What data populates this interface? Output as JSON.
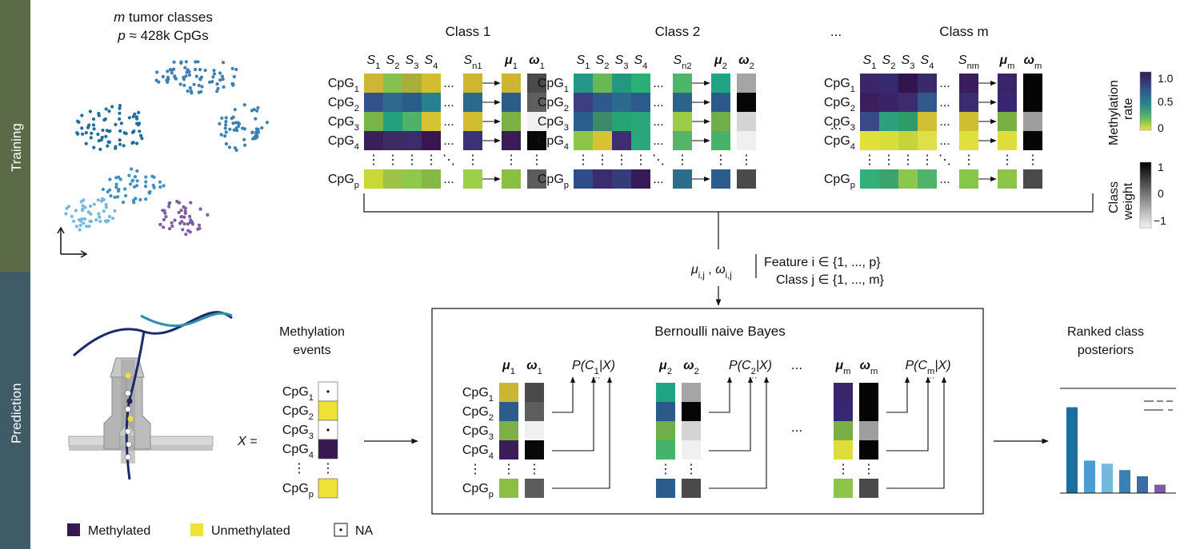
{
  "sidebar": {
    "training_label": "Training",
    "prediction_label": "Prediction",
    "training_color": "#5b6a47",
    "prediction_color": "#3f5b66"
  },
  "training": {
    "tsne_title_line1": "m tumor classes",
    "tsne_title_line2": "p ≈ 428k CpGs",
    "ellipsis": "...",
    "classes": [
      {
        "title": "Class 1",
        "sample_labels": [
          "S1",
          "S2",
          "S3",
          "S4",
          "Sn1"
        ],
        "mu_label": "μ1",
        "omega_label": "ω1",
        "rows": [
          {
            "label": "CpG1",
            "cells": [
              "#cdb536",
              "#86c04e",
              "#a9ad3a",
              "#d2bd31",
              "#cdb731"
            ],
            "mu": "#cdb534",
            "omega": "#4a4a4a"
          },
          {
            "label": "CpG2",
            "cells": [
              "#33518b",
              "#2d6a8c",
              "#2b5d8a",
              "#24818d",
              "#2b6a8c"
            ],
            "mu": "#2c5c8a",
            "omega": "#5e5e5e"
          },
          {
            "label": "CpG3",
            "cells": [
              "#78b34b",
              "#24a080",
              "#4fb26b",
              "#d5c332",
              "#cfbe32"
            ],
            "mu": "#7bb146",
            "omega": "#f0f0f0"
          },
          {
            "label": "CpG4",
            "cells": [
              "#3b1f58",
              "#3d2a63",
              "#3b2d6b",
              "#3a1650",
              "#3d3277"
            ],
            "mu": "#3a1d56",
            "omega": "#080808"
          },
          {
            "label": "CpGp",
            "cells": [
              "#c9d836",
              "#9fc346",
              "#8fc94b",
              "#86b848",
              "#9ecf49"
            ],
            "mu": "#8bbf43",
            "omega": "#5c5c5c"
          }
        ]
      },
      {
        "title": "Class 2",
        "sample_labels": [
          "S1",
          "S2",
          "S3",
          "S4",
          "Sn2"
        ],
        "mu_label": "μ2",
        "omega_label": "ω2",
        "rows": [
          {
            "label": "CpG1",
            "cells": [
              "#23978a",
              "#68b955",
              "#24977f",
              "#29b074",
              "#4cb769"
            ],
            "mu": "#1fa584",
            "omega": "#a5a5a5"
          },
          {
            "label": "CpG2",
            "cells": [
              "#3b3f82",
              "#2d5a8c",
              "#2a6a8d",
              "#2c5a8b",
              "#2b638c"
            ],
            "mu": "#2b5a8a",
            "omega": "#060606"
          },
          {
            "label": "CpG3",
            "cells": [
              "#2a5f8b",
              "#3b8a6c",
              "#28a474",
              "#2aa87b",
              "#9ccb47"
            ],
            "mu": "#70ae4c",
            "omega": "#d4d4d4"
          },
          {
            "label": "CpG4",
            "cells": [
              "#8dc546",
              "#d7c434",
              "#3d2e73",
              "#2ba77e",
              "#54b566"
            ],
            "mu": "#45b36a",
            "omega": "#f0f0f0"
          },
          {
            "label": "CpGp",
            "cells": [
              "#2d4d88",
              "#3d2c6d",
              "#343c7b",
              "#351a55",
              "#2e6c8b"
            ],
            "mu": "#2c5c8b",
            "omega": "#4a4a4a"
          }
        ]
      },
      {
        "title": "Class m",
        "sample_labels": [
          "S1",
          "S2",
          "S3",
          "S4",
          "Snm"
        ],
        "mu_label": "μm",
        "omega_label": "ωm",
        "rows": [
          {
            "label": "CpG1",
            "cells": [
              "#3a2669",
              "#362a6e",
              "#33154d",
              "#382a6b",
              "#3a1b5b"
            ],
            "mu": "#3a2569",
            "omega": "#050505"
          },
          {
            "label": "CpG2",
            "cells": [
              "#3b1f5c",
              "#3b2466",
              "#3d2c6d",
              "#2f5a8b",
              "#3a2c6e"
            ],
            "mu": "#372772",
            "omega": "#050505"
          },
          {
            "label": "CpG3",
            "cells": [
              "#394889",
              "#2d9f7e",
              "#2f9b6a",
              "#d0be35",
              "#d1bd32"
            ],
            "mu": "#78b046",
            "omega": "#9e9e9e"
          },
          {
            "label": "CpG4",
            "cells": [
              "#e0e03a",
              "#d9df3a",
              "#c6d33a",
              "#dfe045",
              "#dfe03d"
            ],
            "mu": "#dedd3c",
            "omega": "#050505"
          },
          {
            "label": "CpGp",
            "cells": [
              "#31b07a",
              "#3ba46e",
              "#8bc64d",
              "#4fb36a",
              "#88c64a"
            ],
            "mu": "#8dc54b",
            "omega": "#4a4a4a"
          }
        ]
      }
    ],
    "row_labels": [
      "CpG1",
      "CpG2",
      "CpG3",
      "CpG4",
      "CpGp"
    ]
  },
  "legends": {
    "methylation": {
      "title_line1": "Methylation",
      "title_line2": "rate",
      "ticks": [
        "1.0",
        "0.5",
        "0"
      ]
    },
    "class_weight": {
      "title_line1": "Class",
      "title_line2": "weight",
      "ticks": [
        "1",
        "0",
        "−1"
      ]
    }
  },
  "params": {
    "mu_label": "μi,j",
    "omega_label": "ωi,j",
    "feature_line": "Feature i ∈ {1, ..., p}",
    "class_line": "Class j ∈ {1, ..., m}"
  },
  "prediction": {
    "events_title_line1": "Methylation",
    "events_title_line2": "events",
    "x_label": "X =",
    "x_cells": [
      "na",
      "#f0e136",
      "na",
      "#36194f",
      "na",
      "#f0e136"
    ],
    "bayes_title": "Bernoulli naive Bayes",
    "bayes_blocks": [
      {
        "mu": "μ1",
        "omega": "ω1",
        "post": "P(C1|X)",
        "mu_cells": [
          "#cdb534",
          "#2c5c8a",
          "#7bb146",
          "#3a1d56",
          "#8bbf43"
        ],
        "omega_cells": [
          "#4a4a4a",
          "#5e5e5e",
          "#f0f0f0",
          "#080808",
          "#5c5c5c"
        ]
      },
      {
        "mu": "μ2",
        "omega": "ω2",
        "post": "P(C2|X)",
        "mu_cells": [
          "#1fa584",
          "#2b5a8a",
          "#70ae4c",
          "#45b36a",
          "#2c5c8b"
        ],
        "omega_cells": [
          "#a5a5a5",
          "#060606",
          "#d4d4d4",
          "#f0f0f0",
          "#4a4a4a"
        ]
      },
      {
        "mu": "μm",
        "omega": "ωm",
        "post": "P(Cm|X)",
        "mu_cells": [
          "#3a2569",
          "#372772",
          "#78b046",
          "#dedd3c",
          "#8dc54b"
        ],
        "omega_cells": [
          "#050505",
          "#050505",
          "#9e9e9e",
          "#050505",
          "#4a4a4a"
        ]
      }
    ],
    "ranked_title_line1": "Ranked class",
    "ranked_title_line2": "posteriors"
  },
  "chart_data": {
    "type": "bar",
    "title": "Ranked class posteriors",
    "values": [
      0.82,
      0.31,
      0.28,
      0.22,
      0.16,
      0.08
    ],
    "colors": [
      "#1c6e9e",
      "#4a9dd0",
      "#74b8e2",
      "#3a81b3",
      "#3c6ba6",
      "#7d5ca6"
    ],
    "ylim": [
      0,
      1
    ]
  },
  "legend_bottom": {
    "methylated": "Methylated",
    "unmethylated": "Unmethylated",
    "na": "NA",
    "methylated_color": "#36194f",
    "unmethylated_color": "#f0e136"
  }
}
